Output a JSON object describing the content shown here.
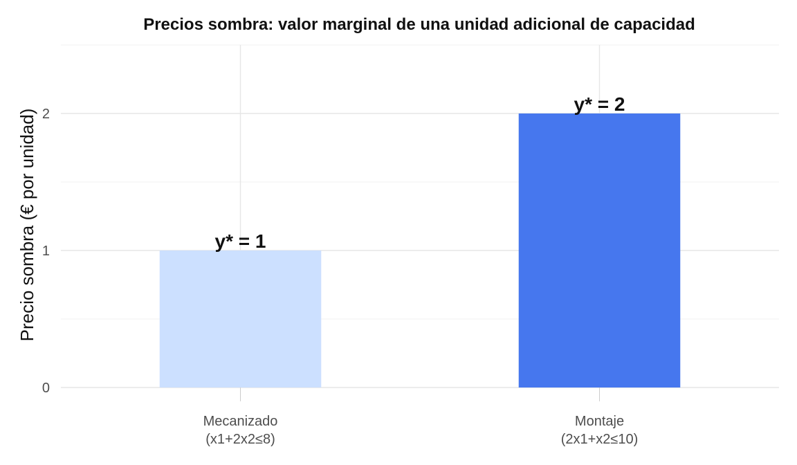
{
  "chart_data": {
    "type": "bar",
    "title": "Precios sombra: valor marginal de una unidad adicional de capacidad",
    "xlabel": "",
    "ylabel": "Precio sombra (€ por unidad)",
    "categories": [
      [
        "Mecanizado",
        "(x1+2x2≤8)"
      ],
      [
        "Montaje",
        "(2x1+x2≤10)"
      ]
    ],
    "values": [
      1,
      2
    ],
    "data_labels": [
      "y* = 1",
      "y* = 2"
    ],
    "bar_colors": [
      "#cce0ff",
      "#4677ee"
    ],
    "ylim": [
      0,
      2.5
    ],
    "yticks": [
      0,
      1,
      2
    ],
    "grid": true,
    "legend": "none"
  }
}
